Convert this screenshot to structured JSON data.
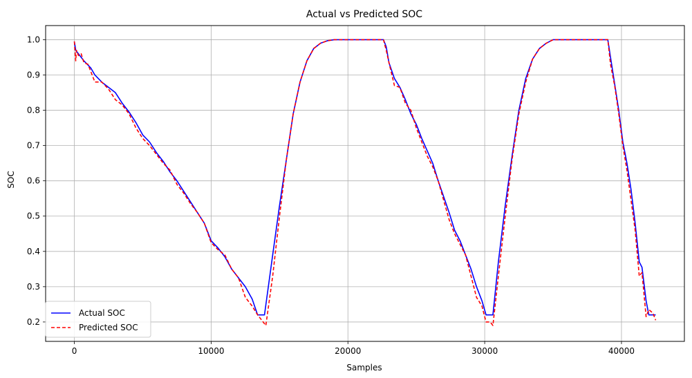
{
  "chart_data": {
    "type": "line",
    "title": "Actual vs Predicted SOC",
    "xlabel": "Samples",
    "ylabel": "SOC",
    "xlim": [
      -2100,
      44600
    ],
    "ylim": [
      0.145,
      1.04
    ],
    "xticks": [
      0,
      10000,
      20000,
      30000,
      40000
    ],
    "yticks": [
      0.2,
      0.3,
      0.4,
      0.5,
      0.6,
      0.7,
      0.8,
      0.9,
      1.0
    ],
    "xtick_labels": [
      "0",
      "10000",
      "20000",
      "30000",
      "40000"
    ],
    "ytick_labels": [
      "0.2",
      "0.3",
      "0.4",
      "0.5",
      "0.6",
      "0.7",
      "0.8",
      "0.9",
      "1.0"
    ],
    "grid": true,
    "legend_position": "lower-left",
    "series": [
      {
        "name": "Actual SOC",
        "color": "#0000ff",
        "style": "solid",
        "x": [
          0,
          100,
          300,
          700,
          1200,
          1500,
          2000,
          2500,
          3000,
          3500,
          4000,
          4500,
          5000,
          5500,
          6000,
          6500,
          7000,
          7500,
          8000,
          8500,
          9000,
          9500,
          10000,
          10500,
          11000,
          11500,
          12000,
          12500,
          13000,
          13400,
          13900,
          14500,
          15000,
          15500,
          16000,
          16500,
          17000,
          17500,
          18000,
          18500,
          19000,
          20000,
          21000,
          22000,
          22600,
          22800,
          23000,
          23400,
          23800,
          24200,
          24600,
          25000,
          25400,
          25800,
          26200,
          26600,
          27000,
          27400,
          27800,
          28200,
          28600,
          29000,
          29400,
          29800,
          30100,
          30600,
          31000,
          31500,
          32000,
          32500,
          33000,
          33500,
          34000,
          34500,
          35000,
          36000,
          37000,
          38000,
          39000,
          39200,
          39500,
          39800,
          40100,
          40400,
          40700,
          41000,
          41300,
          41500,
          41800,
          42000,
          42500
        ],
        "y": [
          0.995,
          0.97,
          0.96,
          0.94,
          0.92,
          0.9,
          0.88,
          0.865,
          0.85,
          0.82,
          0.795,
          0.765,
          0.73,
          0.71,
          0.68,
          0.655,
          0.625,
          0.6,
          0.57,
          0.54,
          0.51,
          0.48,
          0.43,
          0.41,
          0.385,
          0.35,
          0.325,
          0.3,
          0.265,
          0.22,
          0.22,
          0.39,
          0.53,
          0.66,
          0.79,
          0.88,
          0.94,
          0.975,
          0.99,
          0.997,
          1.0,
          1.0,
          1.0,
          1.0,
          1.0,
          0.98,
          0.935,
          0.89,
          0.865,
          0.83,
          0.79,
          0.76,
          0.72,
          0.685,
          0.65,
          0.6,
          0.555,
          0.51,
          0.46,
          0.43,
          0.39,
          0.35,
          0.3,
          0.26,
          0.22,
          0.22,
          0.37,
          0.53,
          0.67,
          0.8,
          0.89,
          0.945,
          0.975,
          0.99,
          1.0,
          1.0,
          1.0,
          1.0,
          1.0,
          0.95,
          0.875,
          0.8,
          0.71,
          0.65,
          0.575,
          0.48,
          0.37,
          0.355,
          0.26,
          0.22,
          0.22
        ]
      },
      {
        "name": "Predicted SOC",
        "color": "#ff0000",
        "style": "dashed",
        "x": [
          0,
          100,
          150,
          300,
          500,
          700,
          1000,
          1200,
          1500,
          2000,
          2500,
          3000,
          3500,
          4000,
          4500,
          5000,
          5500,
          6000,
          6500,
          7000,
          7500,
          8000,
          8500,
          9000,
          9500,
          10000,
          10500,
          11000,
          11500,
          12000,
          12500,
          13000,
          13400,
          13700,
          14000,
          14500,
          15000,
          15500,
          16000,
          16500,
          17000,
          17500,
          18000,
          18500,
          19000,
          20000,
          21000,
          22000,
          22600,
          22800,
          23000,
          23400,
          23800,
          24200,
          24600,
          25000,
          25400,
          25800,
          26200,
          26600,
          27000,
          27400,
          27800,
          28200,
          28600,
          29000,
          29400,
          29800,
          30100,
          30400,
          30600,
          31000,
          31500,
          32000,
          32500,
          33000,
          33500,
          34000,
          34500,
          35000,
          36000,
          37000,
          38000,
          39000,
          39200,
          39500,
          39800,
          40100,
          40400,
          40700,
          41000,
          41300,
          41500,
          41800,
          42000,
          42300,
          42500
        ],
        "y": [
          0.995,
          0.94,
          0.97,
          0.955,
          0.96,
          0.935,
          0.93,
          0.91,
          0.88,
          0.88,
          0.86,
          0.83,
          0.815,
          0.79,
          0.75,
          0.72,
          0.7,
          0.675,
          0.65,
          0.63,
          0.59,
          0.565,
          0.535,
          0.51,
          0.48,
          0.425,
          0.405,
          0.39,
          0.35,
          0.325,
          0.27,
          0.245,
          0.22,
          0.205,
          0.19,
          0.33,
          0.5,
          0.66,
          0.79,
          0.88,
          0.94,
          0.975,
          0.99,
          0.997,
          1.0,
          1.0,
          1.0,
          1.0,
          1.0,
          0.97,
          0.935,
          0.87,
          0.865,
          0.82,
          0.8,
          0.75,
          0.71,
          0.67,
          0.64,
          0.6,
          0.545,
          0.49,
          0.45,
          0.42,
          0.39,
          0.33,
          0.27,
          0.245,
          0.2,
          0.2,
          0.19,
          0.33,
          0.5,
          0.66,
          0.79,
          0.88,
          0.945,
          0.975,
          0.99,
          1.0,
          1.0,
          1.0,
          1.0,
          1.0,
          0.93,
          0.87,
          0.79,
          0.7,
          0.63,
          0.545,
          0.46,
          0.33,
          0.34,
          0.215,
          0.235,
          0.225,
          0.205
        ]
      }
    ]
  }
}
